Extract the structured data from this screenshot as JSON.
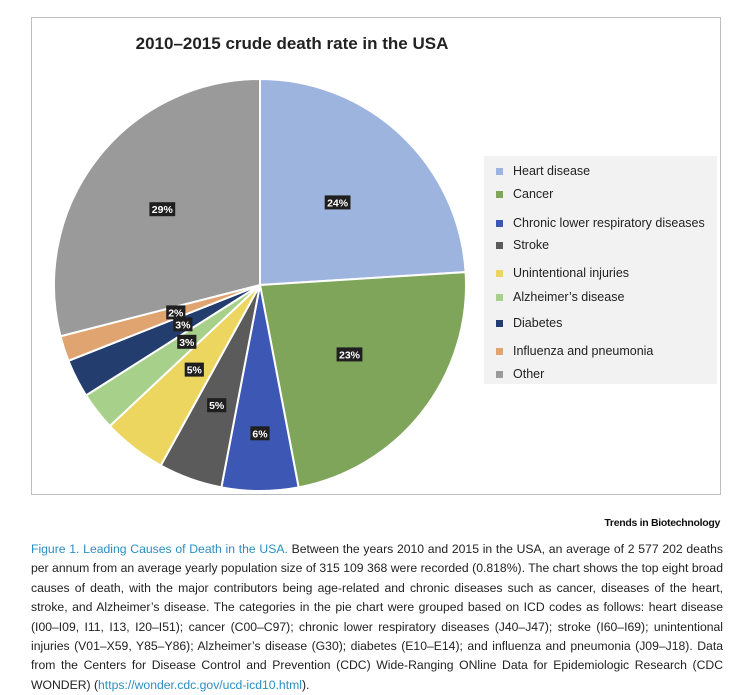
{
  "chart_data": {
    "type": "pie",
    "title": "2010–2015 crude death rate in the USA",
    "categories": [
      "Heart disease",
      "Cancer",
      "Chronic lower respiratory diseases",
      "Stroke",
      "Unintentional injuries",
      "Alzheimer's disease",
      "Diabetes",
      "Influenza and pneumonia",
      "Other"
    ],
    "values": [
      24,
      23,
      6,
      5,
      5,
      3,
      3,
      2,
      29
    ],
    "labels": [
      "24%",
      "23%",
      "6%",
      "5%",
      "5%",
      "3%",
      "3%",
      "2%",
      "29%"
    ],
    "colors": [
      "#9db4df",
      "#7ea55a",
      "#3d58b4",
      "#5b5b5b",
      "#ecd660",
      "#a7d08a",
      "#233d6f",
      "#e0a471",
      "#9a9a9a"
    ],
    "legend_position": "right"
  },
  "legend": {
    "items": [
      "Heart disease",
      "Cancer",
      "Chronic lower respiratory diseases",
      "Stroke",
      "Unintentional injuries",
      "Alzheimer’s disease",
      "Diabetes",
      "Influenza and pneumonia",
      "Other"
    ]
  },
  "source": "Trends in Biotechnology",
  "caption": {
    "lead": "Figure 1. Leading Causes of Death in the USA.",
    "body": " Between the years 2010 and 2015 in the USA, an average of 2 577 202 deaths per annum from an average yearly population size of 315 109 368 were recorded (0.818%). The chart shows the top eight broad causes of death, with the major contributors being age-related and chronic diseases such as cancer, diseases of the heart, stroke, and Alzheimer’s disease. The categories in the pie chart were grouped based on ICD codes as follows: heart disease (I00–I09, I11, I13, I20–I51); cancer (C00–C97); chronic lower respiratory diseases (J40–J47); stroke (I60–I69); unintentional injuries (V01–X59, Y85–Y86); Alzheimer’s disease (G30); diabetes (E10–E14); and influenza and pneumonia (J09–J18). Data from the Centers for Disease Control and Prevention (CDC) Wide-Ranging ONline Data for Epidemiologic Research (CDC WONDER) (",
    "link": "https://wonder.cdc.gov/ucd-icd10.html",
    "tail": ")."
  }
}
